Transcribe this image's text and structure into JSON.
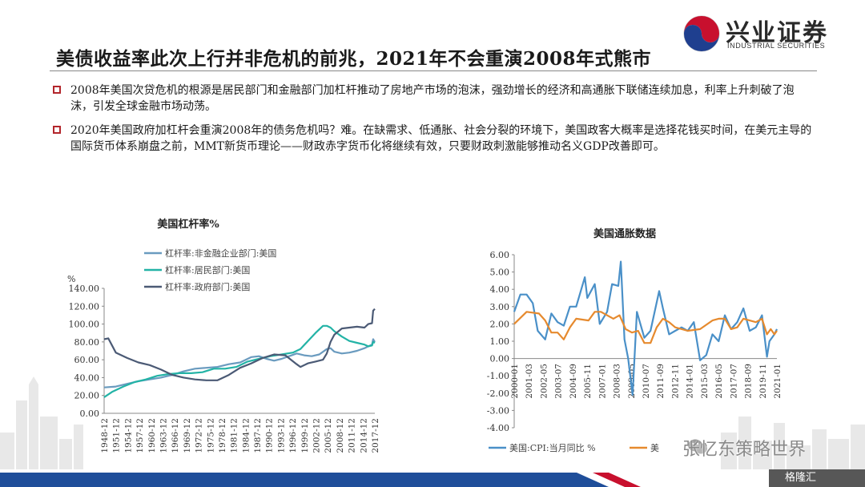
{
  "header": {
    "title": "美债收益率此次上行并非危机的前兆，2021年不会重演2008年式熊市",
    "logo_cn": "兴业证券",
    "logo_en": "INDUSTRIAL SECURITIES"
  },
  "bullets": [
    "2008年美国次贷危机的根源是居民部门和金融部门加杠杆推动了房地产市场的泡沫，强劲增长的经济和高通胀下联储连续加息，利率上升刺破了泡沫，引发全球金融市场动荡。",
    "2020年美国政府加杠杆会重演2008年的债务危机吗？难。在缺需求、低通胀、社会分裂的环境下，美国政客大概率是选择花钱买时间，在美元主导的国际货币体系崩盘之前，MMT新货币理论——财政赤字货币化将继续有效，只要财政刺激能够推动名义GDP改善即可。"
  ],
  "watermark": {
    "text": "张忆东策略世界",
    "site": "格隆汇"
  },
  "colors": {
    "accent": "#b3262c",
    "footer": "#1f4e9a",
    "nonfin": "#6a9bbf",
    "household": "#23b3a6",
    "government": "#4b5a75",
    "cpi": "#4a90c8",
    "orange": "#e68a2e"
  },
  "chart_data": [
    {
      "type": "line",
      "title": "美国杠杆率%",
      "ylabel": "%",
      "ylim": [
        0,
        140
      ],
      "yticks": [
        "0.00",
        "20.00",
        "40.00",
        "60.00",
        "80.00",
        "100.00",
        "120.00",
        "140.00"
      ],
      "xticks": [
        "1948-12",
        "1951-12",
        "1954-12",
        "1957-12",
        "1960-12",
        "1963-12",
        "1966-12",
        "1969-12",
        "1972-12",
        "1975-12",
        "1978-12",
        "1981-12",
        "1984-12",
        "1987-12",
        "1990-12",
        "1993-12",
        "1996-12",
        "1999-12",
        "2002-12",
        "2005-12",
        "2008-12",
        "2011-12",
        "2014-12",
        "2017-12"
      ],
      "xlim": [
        1948.9,
        2020.75
      ],
      "legend_position": "top",
      "series": [
        {
          "name": "杠杆率:非金融企业部门:美国",
          "color": "#6a9bbf",
          "x": [
            1948.9,
            1952,
            1955,
            1958,
            1961,
            1964,
            1967,
            1970,
            1973,
            1976,
            1979,
            1982,
            1985,
            1988,
            1990,
            1992,
            1994,
            1996,
            1998,
            2000,
            2002,
            2004,
            2006,
            2008,
            2009,
            2010,
            2012,
            2014,
            2016,
            2018,
            2019,
            2020,
            2020.3,
            2020.75
          ],
          "y": [
            29,
            30,
            33,
            36,
            38,
            40,
            43,
            47,
            50,
            51,
            52,
            55,
            57,
            63,
            64,
            61,
            59,
            61,
            64,
            67,
            65,
            64,
            66,
            72,
            73,
            69,
            67,
            68,
            70,
            73,
            75,
            77,
            83,
            80
          ]
        },
        {
          "name": "杠杆率:居民部门:美国",
          "color": "#23b3a6",
          "x": [
            1948.9,
            1951,
            1954,
            1957,
            1960,
            1963,
            1966,
            1969,
            1972,
            1975,
            1978,
            1981,
            1984,
            1987,
            1990,
            1993,
            1996,
            1999,
            2001,
            2003,
            2005,
            2007,
            2008,
            2009,
            2010,
            2012,
            2014,
            2016,
            2018,
            2019,
            2020,
            2020.3,
            2020.75
          ],
          "y": [
            18,
            24,
            30,
            35,
            38,
            42,
            44,
            45,
            45,
            46,
            50,
            50,
            52,
            58,
            61,
            64,
            66,
            68,
            72,
            81,
            90,
            98,
            98,
            96,
            92,
            86,
            81,
            79,
            77,
            75,
            76,
            80,
            79
          ]
        },
        {
          "name": "杠杆率:政府部门:美国",
          "color": "#4b5a75",
          "x": [
            1948.9,
            1950,
            1952,
            1955,
            1958,
            1961,
            1964,
            1967,
            1970,
            1973,
            1976,
            1979,
            1982,
            1985,
            1988,
            1991,
            1994,
            1997,
            2000,
            2001,
            2003,
            2005,
            2007,
            2008,
            2009,
            2010,
            2012,
            2014,
            2016,
            2018,
            2019,
            2020,
            2020.3,
            2020.75
          ],
          "y": [
            83,
            84,
            68,
            62,
            57,
            54,
            49,
            43,
            40,
            38,
            37,
            37,
            43,
            51,
            56,
            62,
            66,
            65,
            55,
            52,
            56,
            58,
            60,
            67,
            80,
            88,
            95,
            96,
            97,
            96,
            100,
            101,
            115,
            117
          ]
        }
      ]
    },
    {
      "type": "line",
      "title": "美国通胀数据",
      "ylim": [
        -4,
        6
      ],
      "yticks": [
        "-4.00",
        "-3.00",
        "-2.00",
        "-1.00",
        "0.00",
        "1.00",
        "2.00",
        "3.00",
        "4.00",
        "5.00",
        "6.00"
      ],
      "xticks": [
        "2000-01",
        "2001-03",
        "2002-05",
        "2003-07",
        "2004-09",
        "2005-11",
        "2007-01",
        "2008-03",
        "2009-05",
        "2010-07",
        "2011-09",
        "2012-11",
        "2014-01",
        "2015-03",
        "2016-05",
        "2017-07",
        "2018-09",
        "2019-11",
        "2021-01"
      ],
      "xlim": [
        2000.0,
        2021.2
      ],
      "legend_position": "bottom",
      "series": [
        {
          "name": "美国:CPI:当月同比 %",
          "color": "#4a90c8",
          "x": [
            2000.0,
            2000.5,
            2001.0,
            2001.5,
            2001.9,
            2002.5,
            2003.0,
            2003.5,
            2004.0,
            2004.5,
            2005.0,
            2005.7,
            2005.9,
            2006.5,
            2006.9,
            2007.5,
            2007.9,
            2008.4,
            2008.6,
            2008.9,
            2009.2,
            2009.55,
            2009.9,
            2010.5,
            2011.0,
            2011.7,
            2012.0,
            2012.5,
            2013.0,
            2013.5,
            2014.0,
            2014.5,
            2015.0,
            2015.5,
            2016.0,
            2016.5,
            2017.0,
            2017.5,
            2018.0,
            2018.5,
            2019.0,
            2019.5,
            2020.0,
            2020.4,
            2020.6,
            2021.0,
            2021.2
          ],
          "y": [
            2.7,
            3.7,
            3.7,
            3.2,
            1.6,
            1.1,
            2.6,
            2.1,
            1.9,
            3.0,
            3.0,
            4.7,
            3.5,
            4.3,
            2.0,
            2.7,
            4.3,
            4.2,
            5.6,
            1.1,
            0.0,
            -2.1,
            2.7,
            1.2,
            1.6,
            3.9,
            2.9,
            1.4,
            1.6,
            1.8,
            1.6,
            2.1,
            -0.1,
            0.2,
            1.4,
            1.0,
            2.5,
            1.7,
            2.1,
            2.9,
            1.6,
            1.8,
            2.5,
            0.1,
            1.0,
            1.4,
            1.7
          ]
        },
        {
          "name": "美",
          "color": "#e68a2e",
          "x": [
            2000.0,
            2001.0,
            2002.0,
            2002.5,
            2003.0,
            2003.5,
            2004.0,
            2004.5,
            2005.0,
            2006.0,
            2006.5,
            2007.0,
            2008.0,
            2008.5,
            2009.0,
            2009.5,
            2010.0,
            2010.5,
            2011.0,
            2011.5,
            2012.0,
            2012.5,
            2013.0,
            2014.0,
            2015.0,
            2016.0,
            2016.5,
            2017.0,
            2017.5,
            2018.0,
            2018.5,
            2019.0,
            2019.5,
            2020.0,
            2020.4,
            2020.7,
            2021.0,
            2021.2
          ],
          "y": [
            2.0,
            2.7,
            2.6,
            2.2,
            1.5,
            1.5,
            1.1,
            1.8,
            2.3,
            2.2,
            2.7,
            2.7,
            2.3,
            2.5,
            1.7,
            1.5,
            1.6,
            0.9,
            0.9,
            1.8,
            2.3,
            2.1,
            1.8,
            1.6,
            1.7,
            2.2,
            2.3,
            2.3,
            1.7,
            1.8,
            2.3,
            2.2,
            2.1,
            2.3,
            1.4,
            1.7,
            1.4,
            1.6
          ]
        }
      ]
    }
  ]
}
